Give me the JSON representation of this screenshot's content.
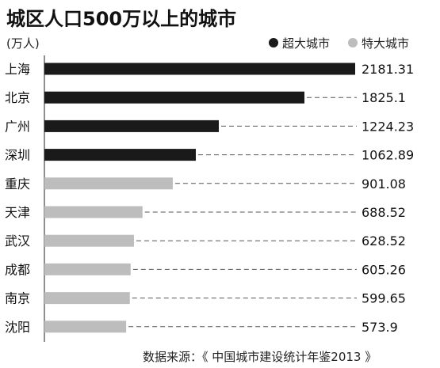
{
  "chart_data": {
    "type": "bar",
    "orientation": "horizontal",
    "title": "城区人口500万以上的城市",
    "unit_label": "(万人)",
    "categories": [
      "上海",
      "北京",
      "广州",
      "深圳",
      "重庆",
      "天津",
      "武汉",
      "成都",
      "南京",
      "沈阳"
    ],
    "values": [
      2181.31,
      1825.1,
      1224.23,
      1062.89,
      901.08,
      688.52,
      628.52,
      605.26,
      599.65,
      573.9
    ],
    "value_labels": [
      "2181.31",
      "1825.1",
      "1224.23",
      "1062.89",
      "901.08",
      "688.52",
      "628.52",
      "605.26",
      "599.65",
      "573.9"
    ],
    "groups": [
      "超大城市",
      "超大城市",
      "超大城市",
      "超大城市",
      "特大城市",
      "特大城市",
      "特大城市",
      "特大城市",
      "特大城市",
      "特大城市"
    ],
    "xlim": [
      0,
      2181.31
    ],
    "grid": false,
    "legend": {
      "placement": "top-right",
      "entries": [
        {
          "name": "超大城市",
          "color": "#1a1a1a"
        },
        {
          "name": "特大城市",
          "color": "#bdbdbd"
        }
      ]
    },
    "source": "数据来源：《 中国城市建设统计年鉴2013 》"
  }
}
